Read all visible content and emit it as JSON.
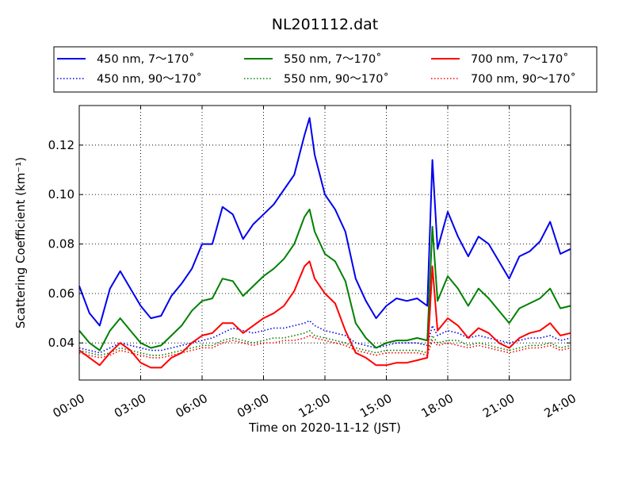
{
  "chart_data": {
    "type": "line",
    "title": "NL201112.dat",
    "xlabel": "Time on 2020-11-12 (JST)",
    "ylabel": "Scattering Coefficient (km⁻¹)",
    "xlim": [
      0,
      24
    ],
    "ylim": [
      0.025,
      0.136
    ],
    "xticks": [
      0,
      3,
      6,
      9,
      12,
      15,
      18,
      21,
      24
    ],
    "xtick_labels": [
      "00:00",
      "03:00",
      "06:00",
      "09:00",
      "12:00",
      "15:00",
      "18:00",
      "21:00",
      "24:00"
    ],
    "yticks": [
      0.04,
      0.06,
      0.08,
      0.1,
      0.12
    ],
    "ytick_labels": [
      "0.04",
      "0.06",
      "0.08",
      "0.10",
      "0.12"
    ],
    "grid": true,
    "legend": {
      "placement": "top",
      "columns": 3
    },
    "x": [
      0,
      0.5,
      1,
      1.5,
      2,
      2.5,
      3,
      3.5,
      4,
      4.5,
      5,
      5.5,
      6,
      6.5,
      7,
      7.5,
      8,
      8.5,
      9,
      9.5,
      10,
      10.5,
      11,
      11.25,
      11.5,
      12,
      12.5,
      13,
      13.5,
      14,
      14.5,
      15,
      15.5,
      16,
      16.5,
      17,
      17.25,
      17.5,
      18,
      18.5,
      19,
      19.5,
      20,
      20.5,
      21,
      21.5,
      22,
      22.5,
      23,
      23.5,
      24
    ],
    "series": [
      {
        "name": "450 nm, 7～170˚",
        "color": "#0000ee",
        "style": "solid",
        "values": [
          0.063,
          0.052,
          0.047,
          0.062,
          0.069,
          0.062,
          0.055,
          0.05,
          0.051,
          0.059,
          0.064,
          0.07,
          0.08,
          0.08,
          0.095,
          0.092,
          0.082,
          0.088,
          0.092,
          0.096,
          0.102,
          0.108,
          0.124,
          0.131,
          0.116,
          0.1,
          0.094,
          0.085,
          0.066,
          0.057,
          0.05,
          0.055,
          0.058,
          0.057,
          0.058,
          0.055,
          0.114,
          0.078,
          0.093,
          0.083,
          0.075,
          0.083,
          0.08,
          0.073,
          0.066,
          0.075,
          0.077,
          0.081,
          0.089,
          0.076,
          0.078
        ]
      },
      {
        "name": "450 nm, 90～170˚",
        "color": "#0000ee",
        "style": "dotted",
        "values": [
          0.038,
          0.037,
          0.036,
          0.038,
          0.04,
          0.039,
          0.038,
          0.037,
          0.037,
          0.038,
          0.039,
          0.04,
          0.041,
          0.042,
          0.044,
          0.046,
          0.045,
          0.044,
          0.045,
          0.046,
          0.046,
          0.047,
          0.048,
          0.049,
          0.047,
          0.045,
          0.044,
          0.043,
          0.04,
          0.039,
          0.038,
          0.039,
          0.04,
          0.04,
          0.04,
          0.039,
          0.047,
          0.043,
          0.045,
          0.044,
          0.042,
          0.043,
          0.042,
          0.041,
          0.04,
          0.041,
          0.042,
          0.042,
          0.043,
          0.041,
          0.042
        ]
      },
      {
        "name": "550 nm, 7～170˚",
        "color": "#008000",
        "style": "solid",
        "values": [
          0.045,
          0.04,
          0.037,
          0.045,
          0.05,
          0.045,
          0.04,
          0.038,
          0.039,
          0.043,
          0.047,
          0.053,
          0.057,
          0.058,
          0.066,
          0.065,
          0.059,
          0.063,
          0.067,
          0.07,
          0.074,
          0.08,
          0.091,
          0.094,
          0.085,
          0.076,
          0.073,
          0.065,
          0.048,
          0.042,
          0.038,
          0.04,
          0.041,
          0.041,
          0.042,
          0.041,
          0.087,
          0.057,
          0.067,
          0.062,
          0.055,
          0.062,
          0.058,
          0.053,
          0.048,
          0.054,
          0.056,
          0.058,
          0.062,
          0.054,
          0.055
        ]
      },
      {
        "name": "550 nm, 90～170˚",
        "color": "#008000",
        "style": "dotted",
        "values": [
          0.037,
          0.036,
          0.035,
          0.036,
          0.038,
          0.037,
          0.036,
          0.035,
          0.035,
          0.036,
          0.037,
          0.038,
          0.039,
          0.039,
          0.041,
          0.042,
          0.041,
          0.04,
          0.041,
          0.042,
          0.042,
          0.043,
          0.044,
          0.045,
          0.043,
          0.042,
          0.041,
          0.04,
          0.038,
          0.037,
          0.036,
          0.037,
          0.037,
          0.037,
          0.037,
          0.036,
          0.043,
          0.04,
          0.041,
          0.041,
          0.039,
          0.04,
          0.039,
          0.038,
          0.037,
          0.038,
          0.039,
          0.039,
          0.04,
          0.038,
          0.039
        ]
      },
      {
        "name": "700 nm, 7～170˚",
        "color": "#ff0000",
        "style": "solid",
        "values": [
          0.037,
          0.034,
          0.031,
          0.036,
          0.04,
          0.037,
          0.032,
          0.03,
          0.03,
          0.034,
          0.036,
          0.04,
          0.043,
          0.044,
          0.048,
          0.048,
          0.044,
          0.047,
          0.05,
          0.052,
          0.055,
          0.061,
          0.071,
          0.073,
          0.066,
          0.06,
          0.056,
          0.045,
          0.036,
          0.034,
          0.031,
          0.031,
          0.032,
          0.032,
          0.033,
          0.034,
          0.071,
          0.045,
          0.05,
          0.047,
          0.042,
          0.046,
          0.044,
          0.04,
          0.038,
          0.042,
          0.044,
          0.045,
          0.048,
          0.043,
          0.044
        ]
      },
      {
        "name": "700 nm, 90～170˚",
        "color": "#ff0000",
        "style": "dotted",
        "values": [
          0.036,
          0.035,
          0.034,
          0.035,
          0.037,
          0.036,
          0.035,
          0.034,
          0.034,
          0.035,
          0.036,
          0.037,
          0.038,
          0.038,
          0.04,
          0.041,
          0.04,
          0.039,
          0.04,
          0.04,
          0.041,
          0.041,
          0.042,
          0.043,
          0.042,
          0.041,
          0.04,
          0.039,
          0.037,
          0.036,
          0.035,
          0.036,
          0.036,
          0.036,
          0.036,
          0.035,
          0.041,
          0.039,
          0.04,
          0.039,
          0.038,
          0.039,
          0.038,
          0.037,
          0.036,
          0.037,
          0.038,
          0.038,
          0.039,
          0.037,
          0.038
        ]
      }
    ]
  }
}
